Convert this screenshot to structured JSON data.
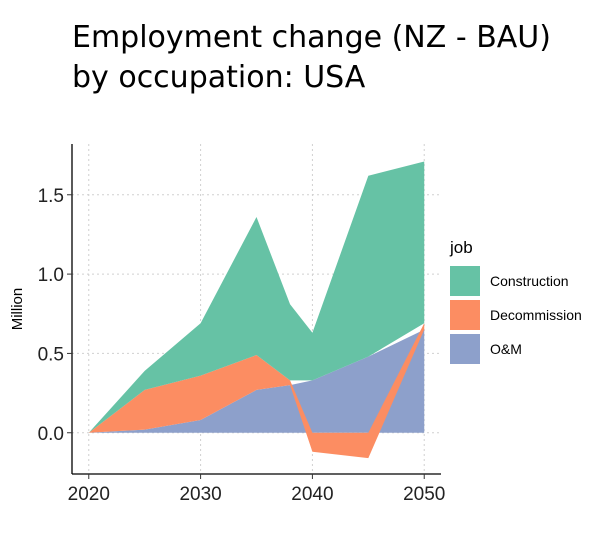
{
  "title_lines": [
    "Employment change (NZ - BAU)",
    "by occupation: USA"
  ],
  "chart_data": {
    "type": "area",
    "title": "Employment change (NZ - BAU) by occupation: USA",
    "xlabel": "",
    "ylabel": "Million",
    "x": [
      2020,
      2025,
      2030,
      2035,
      2038,
      2040,
      2045,
      2050
    ],
    "xlim": [
      2018.5,
      2051.5
    ],
    "ylim": [
      -0.26,
      1.82
    ],
    "xticks": [
      2020,
      2030,
      2040,
      2050
    ],
    "yticks": [
      0.0,
      0.5,
      1.0,
      1.5
    ],
    "xtick_labels": [
      "2020",
      "2030",
      "2040",
      "2050"
    ],
    "ytick_labels": [
      "0.0",
      "0.5",
      "1.0",
      "1.5"
    ],
    "grid": true,
    "legend": {
      "title": "job",
      "position": "right"
    },
    "series": [
      {
        "name": "Construction",
        "color": "#66c2a5",
        "values": [
          0.0,
          0.12,
          0.33,
          0.87,
          0.48,
          0.3,
          1.14,
          1.02
        ]
      },
      {
        "name": "Decommission",
        "color": "#fc8d62",
        "values": [
          0.0,
          0.25,
          0.28,
          0.22,
          0.03,
          -0.12,
          -0.16,
          0.04
        ]
      },
      {
        "name": "O&M",
        "color": "#8da0cb",
        "values": [
          0.0,
          0.02,
          0.08,
          0.27,
          0.3,
          0.33,
          0.48,
          0.65
        ]
      }
    ]
  }
}
